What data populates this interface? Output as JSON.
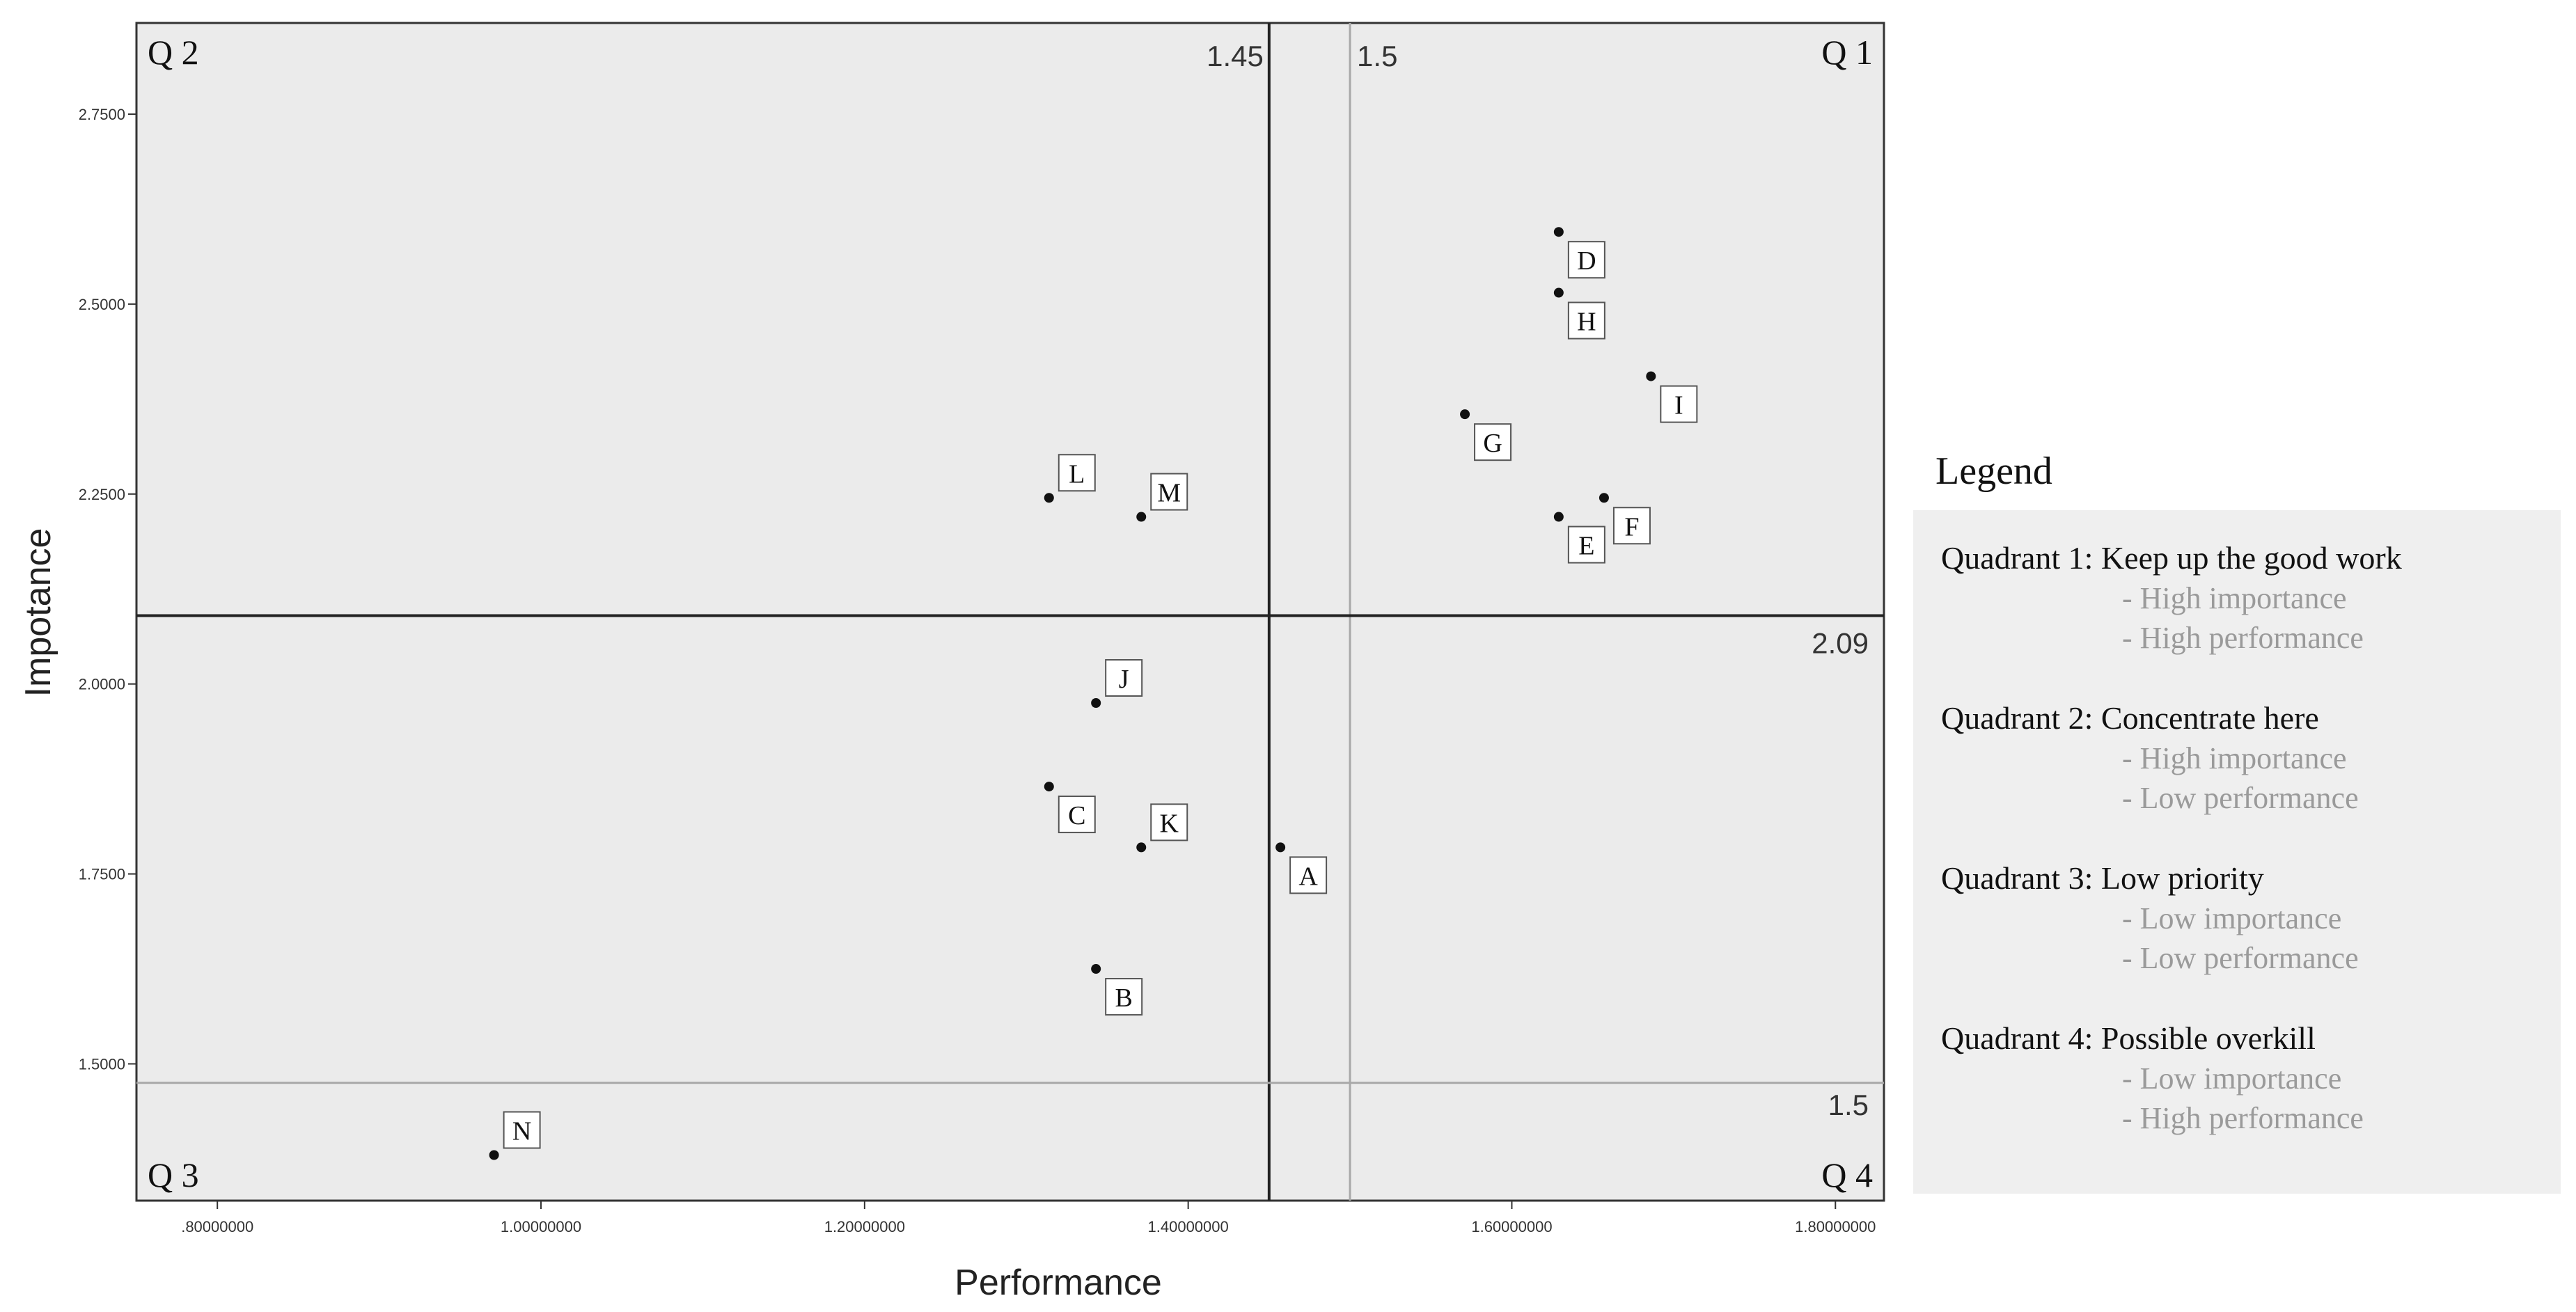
{
  "chart_data": {
    "type": "scatter",
    "xlabel": "Performance",
    "ylabel": "Impotance",
    "xlim": [
      0.75,
      1.83
    ],
    "ylim": [
      1.32,
      2.87
    ],
    "x_ticks": [
      0.8,
      1.0,
      1.2,
      1.4,
      1.6,
      1.8
    ],
    "x_tick_labels": [
      ".80000000",
      "1.00000000",
      "1.20000000",
      "1.40000000",
      "1.60000000",
      "1.80000000"
    ],
    "y_ticks": [
      1.5,
      1.75,
      2.0,
      2.25,
      2.5,
      2.75
    ],
    "y_tick_labels": [
      "1.5000",
      "1.7500",
      "2.0000",
      "2.2500",
      "2.5000",
      "2.7500"
    ],
    "grid": false,
    "points": [
      {
        "label": "A",
        "x": 1.457,
        "y": 1.785
      },
      {
        "label": "B",
        "x": 1.343,
        "y": 1.625
      },
      {
        "label": "C",
        "x": 1.314,
        "y": 1.865
      },
      {
        "label": "D",
        "x": 1.629,
        "y": 2.595
      },
      {
        "label": "E",
        "x": 1.629,
        "y": 2.22
      },
      {
        "label": "F",
        "x": 1.657,
        "y": 2.245
      },
      {
        "label": "G",
        "x": 1.571,
        "y": 2.355
      },
      {
        "label": "H",
        "x": 1.629,
        "y": 2.515
      },
      {
        "label": "I",
        "x": 1.686,
        "y": 2.405
      },
      {
        "label": "J",
        "x": 1.343,
        "y": 1.975
      },
      {
        "label": "K",
        "x": 1.371,
        "y": 1.785
      },
      {
        "label": "L",
        "x": 1.314,
        "y": 2.245
      },
      {
        "label": "M",
        "x": 1.371,
        "y": 2.22
      },
      {
        "label": "N",
        "x": 0.971,
        "y": 1.38
      }
    ],
    "reference_lines": [
      {
        "axis": "x",
        "value": 1.45,
        "label": "1.45",
        "style": "dark"
      },
      {
        "axis": "x",
        "value": 1.5,
        "label": "1.5",
        "style": "light"
      },
      {
        "axis": "y",
        "value": 2.09,
        "label": "2.09",
        "style": "dark"
      },
      {
        "axis": "y",
        "value": 1.475,
        "label": "1.5",
        "style": "light"
      }
    ],
    "quadrant_labels": {
      "q1": "Q 1",
      "q2": "Q 2",
      "q3": "Q 3",
      "q4": "Q 4"
    }
  },
  "legend": {
    "title": "Legend",
    "items": [
      {
        "heading": "Quadrant 1: Keep up the good work",
        "lines": [
          "- High importance",
          "- High performance"
        ]
      },
      {
        "heading": "Quadrant 2: Concentrate here",
        "lines": [
          "- High importance",
          "- Low performance"
        ]
      },
      {
        "heading": "Quadrant 3: Low priority",
        "lines": [
          "- Low importance",
          "- Low performance"
        ]
      },
      {
        "heading": "Quadrant 4: Possible overkill",
        "lines": [
          "- Low importance",
          "- High performance"
        ]
      }
    ]
  },
  "colors": {
    "plot_background": "#ebebeb",
    "dark_line": "#222222",
    "light_line": "#a8a8a8",
    "point": "#111111",
    "legend_sub_text": "#9a9a9a"
  }
}
